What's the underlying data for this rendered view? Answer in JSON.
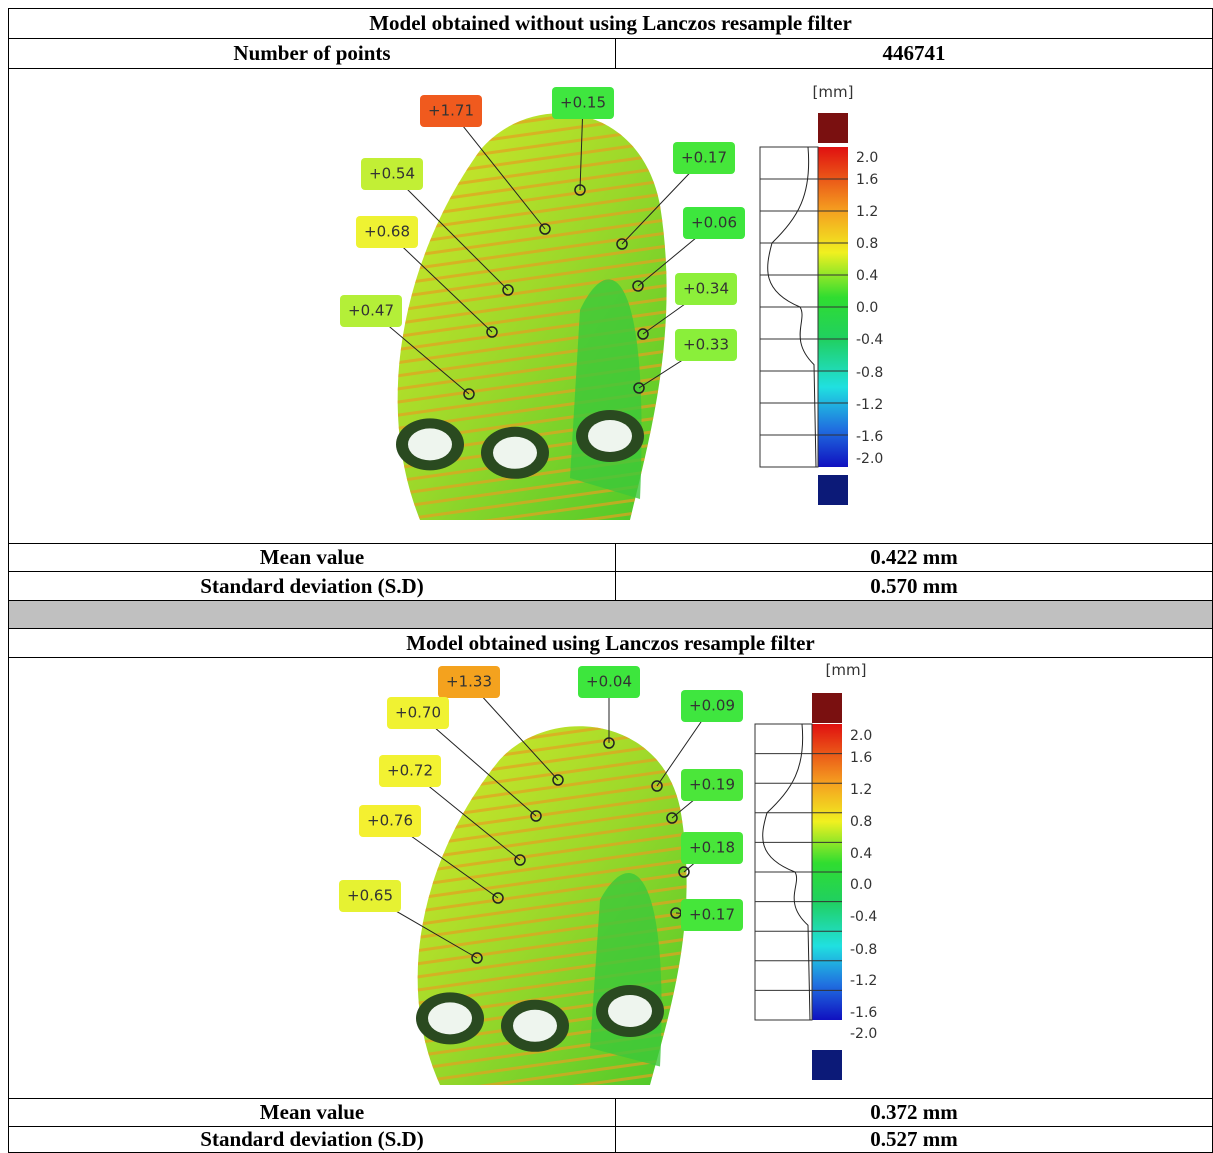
{
  "sections": [
    {
      "title": "Model obtained without using Lanczos resample filter",
      "points_label": "Number of points",
      "points": "446741",
      "figure": {
        "unit": "[mm]",
        "scale_ticks": [
          "2.0",
          "1.6",
          "1.2",
          "0.8",
          "0.4",
          "0.0",
          "-0.4",
          "-0.8",
          "-1.2",
          "-1.6",
          "-2.0"
        ],
        "annotations": [
          {
            "label": "+1.71",
            "color": "#f05a1e"
          },
          {
            "label": "+0.15",
            "color": "#3fe63f"
          },
          {
            "label": "+0.17",
            "color": "#45e63a"
          },
          {
            "label": "+0.54",
            "color": "#c2ef35"
          },
          {
            "label": "+0.06",
            "color": "#3de63d"
          },
          {
            "label": "+0.68",
            "color": "#eef232"
          },
          {
            "label": "+0.34",
            "color": "#8def3a"
          },
          {
            "label": "+0.47",
            "color": "#b4ef38"
          },
          {
            "label": "+0.33",
            "color": "#8aef3a"
          }
        ]
      },
      "stats": [
        [
          "Mean value",
          "0.422 mm"
        ],
        [
          "Standard deviation (S.D)",
          "0.570 mm"
        ]
      ]
    },
    {
      "title": "Model obtained using Lanczos resample filter",
      "figure": {
        "unit": "[mm]",
        "scale_ticks": [
          "2.0",
          "1.6",
          "1.2",
          "0.8",
          "0.4",
          "0.0",
          "-0.4",
          "-0.8",
          "-1.2",
          "-1.6",
          "-2.0"
        ],
        "annotations": [
          {
            "label": "+1.33",
            "color": "#f4a21e"
          },
          {
            "label": "+0.04",
            "color": "#3de63d"
          },
          {
            "label": "+0.09",
            "color": "#3fe63f"
          },
          {
            "label": "+0.70",
            "color": "#f0f232"
          },
          {
            "label": "+0.19",
            "color": "#4be63a"
          },
          {
            "label": "+0.72",
            "color": "#f2f232"
          },
          {
            "label": "+0.18",
            "color": "#48e63a"
          },
          {
            "label": "+0.76",
            "color": "#f4f030"
          },
          {
            "label": "+0.17",
            "color": "#45e63a"
          },
          {
            "label": "+0.65",
            "color": "#e6f232"
          }
        ]
      },
      "stats": [
        [
          "Mean value",
          "0.372 mm"
        ],
        [
          "Standard deviation (S.D)",
          "0.527 mm"
        ]
      ]
    }
  ]
}
